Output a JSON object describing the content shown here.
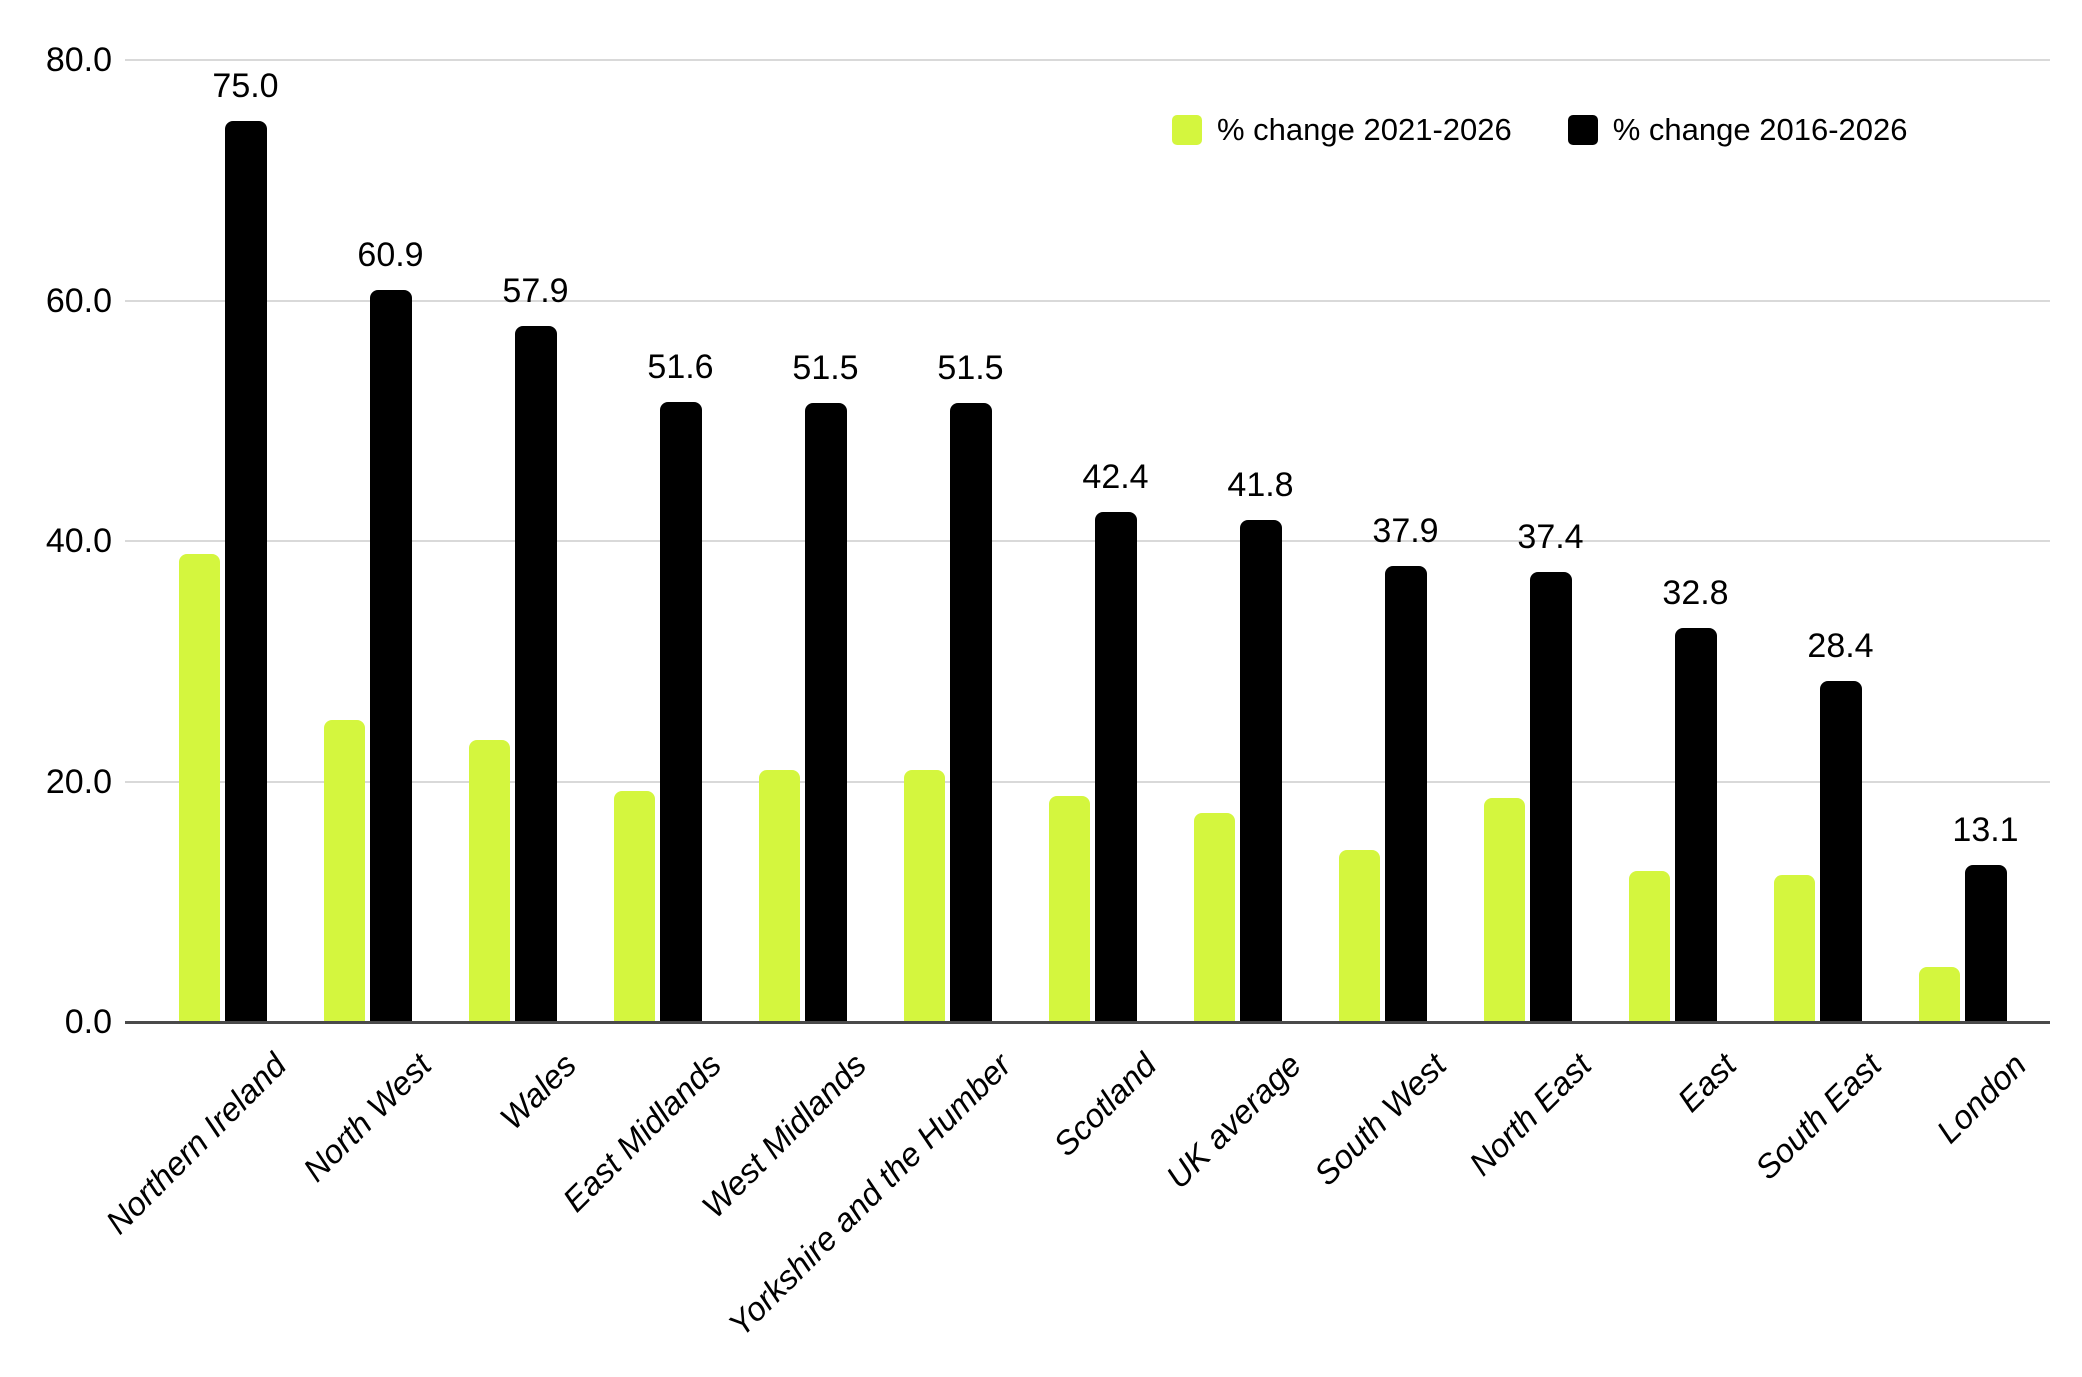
{
  "chart_data": {
    "type": "bar",
    "title": "",
    "xlabel": "",
    "ylabel": "",
    "categories": [
      "Northern Ireland",
      "North West",
      "Wales",
      "East Midlands",
      "West Midlands",
      "Yorkshire and the Humber",
      "Scotland",
      "UK average",
      "South West",
      "North East",
      "East",
      "South East",
      "London"
    ],
    "series": [
      {
        "name": "% change 2021-2026",
        "color": "#d4f63e",
        "show_data_labels": false,
        "values": [
          38.9,
          25.1,
          23.5,
          19.2,
          21.0,
          21.0,
          18.8,
          17.4,
          14.3,
          18.6,
          12.6,
          12.2,
          4.6
        ]
      },
      {
        "name": "% change 2016-2026",
        "color": "#000000",
        "show_data_labels": true,
        "values": [
          75.0,
          60.9,
          57.9,
          51.6,
          51.5,
          51.5,
          42.4,
          41.8,
          37.9,
          37.4,
          32.8,
          28.4,
          13.1
        ]
      }
    ],
    "ylim": [
      0,
      80
    ],
    "yticks": [
      0.0,
      20.0,
      40.0,
      60.0,
      80.0
    ],
    "ytick_format_decimals": 1,
    "grid": true,
    "grid_color": "#d9d9d9",
    "axis_line_color": "#4a4a4a",
    "legend_position": "top-right"
  }
}
